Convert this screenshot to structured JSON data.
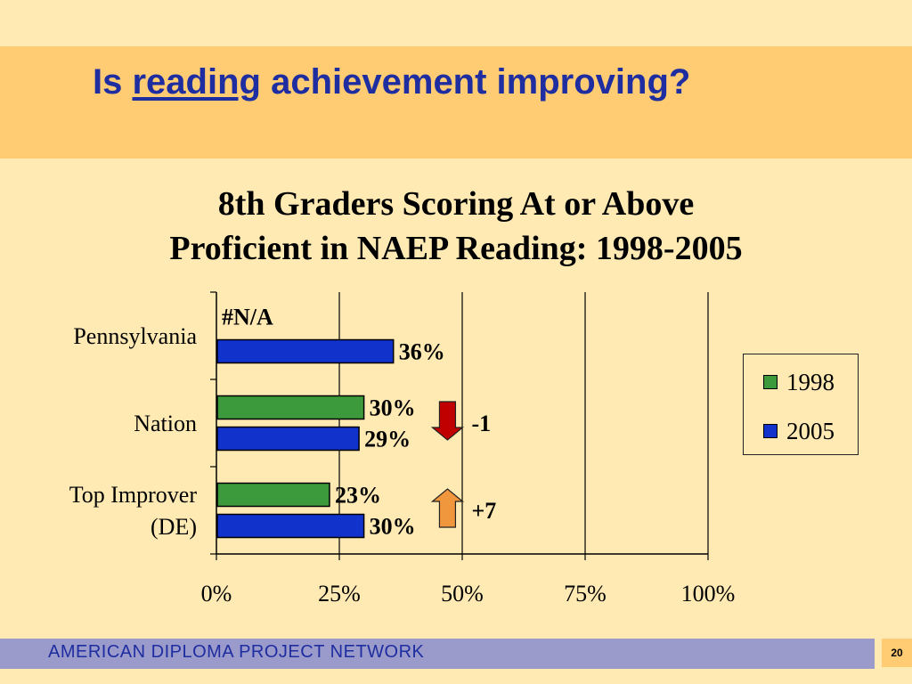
{
  "slide": {
    "title_prefix": "Is",
    "title_underlined": "reading",
    "title_suffix": "achievement improving?"
  },
  "chart_data": {
    "type": "bar",
    "orientation": "horizontal",
    "title_line1": "8th Graders Scoring At or Above",
    "title_line2": "Proficient in NAEP Reading: 1998-2005",
    "categories": [
      {
        "label_lines": [
          "Pennsylvania"
        ]
      },
      {
        "label_lines": [
          "Nation"
        ]
      },
      {
        "label_lines": [
          "Top Improver",
          "(DE)"
        ]
      }
    ],
    "series": [
      {
        "name": "1998",
        "color": "#3C9A3C",
        "values": [
          null,
          30,
          23
        ],
        "labels": [
          "#N/A",
          "30%",
          "23%"
        ]
      },
      {
        "name": "2005",
        "color": "#1133CC",
        "values": [
          36,
          29,
          30
        ],
        "labels": [
          "36%",
          "29%",
          "30%"
        ]
      }
    ],
    "xlim": [
      0,
      100
    ],
    "x_ticks": [
      "0%",
      "25%",
      "50%",
      "75%",
      "100%"
    ],
    "vertical_gridlines": true,
    "legend_position": "right",
    "changes": [
      {
        "category": "Nation",
        "label": "-1",
        "direction": "down",
        "color": "#C00000"
      },
      {
        "category": "Top Improver (DE)",
        "label": "+7",
        "direction": "up",
        "color": "#F0963C"
      }
    ]
  },
  "footer": {
    "text": "AMERICAN DIPLOMA PROJECT NETWORK",
    "page_number": "20"
  }
}
